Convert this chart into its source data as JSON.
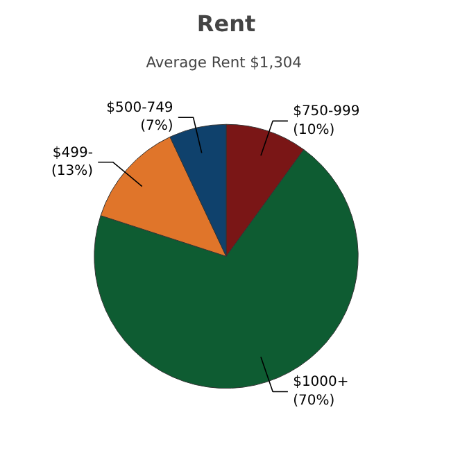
{
  "chart_data": {
    "type": "pie",
    "title": "Rent",
    "subtitle": "Average Rent  $1,304",
    "categories": [
      "$750-999",
      "$1000+",
      "$499-",
      "$500-749"
    ],
    "values": [
      10,
      70,
      13,
      7
    ],
    "value_labels": [
      "(10%)",
      "(70%)",
      "(13%)",
      "(7%)"
    ],
    "colors": [
      "#7a1616",
      "#0e5c32",
      "#e0752a",
      "#0f416c"
    ],
    "legend": false
  }
}
